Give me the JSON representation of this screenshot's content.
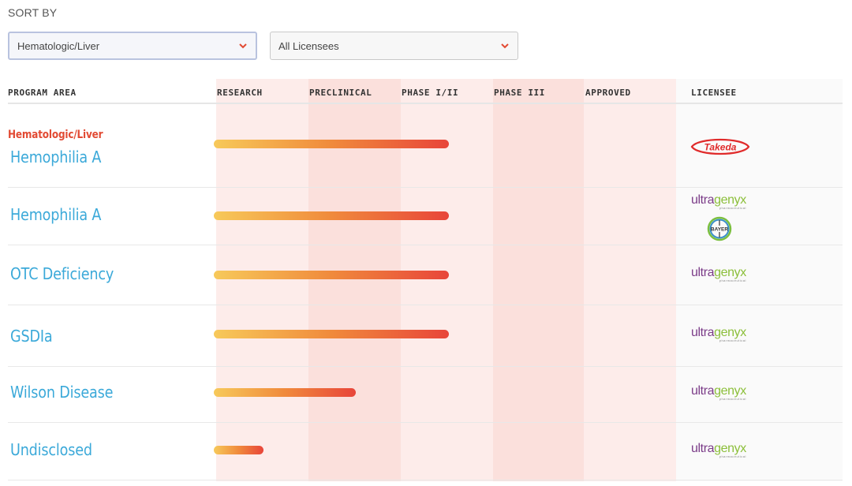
{
  "sort": {
    "label": "SORT BY",
    "program_area_value": "Hematologic/Liver",
    "licensee_value": "All Licensees"
  },
  "headers": {
    "program_area": "PROGRAM AREA",
    "research": "RESEARCH",
    "preclinical": "PRECLINICAL",
    "phase12": "PHASE I/II",
    "phase3": "PHASE III",
    "approved": "APPROVED",
    "licensee": "LICENSEE"
  },
  "category": "Hematologic/Liver",
  "rows": [
    {
      "program": "Hemophilia A",
      "stage": "Phase I/II",
      "licensees": [
        "Takeda"
      ]
    },
    {
      "program": "Hemophilia A",
      "stage": "Phase I/II",
      "licensees": [
        "ultragenyx",
        "BAYER"
      ]
    },
    {
      "program": "OTC Deficiency",
      "stage": "Phase I/II",
      "licensees": [
        "ultragenyx"
      ]
    },
    {
      "program": "GSDIa",
      "stage": "Phase I/II",
      "licensees": [
        "ultragenyx"
      ]
    },
    {
      "program": "Wilson Disease",
      "stage": "Preclinical",
      "licensees": [
        "ultragenyx"
      ]
    },
    {
      "program": "Undisclosed",
      "stage": "Research",
      "licensees": [
        "ultragenyx"
      ]
    }
  ],
  "logos": {
    "takeda": "Takeda",
    "ultragenyx_a": "ultra",
    "ultragenyx_b": "genyx",
    "ultragenyx_sub": "pharmaceutical",
    "bayer": "BAYER"
  },
  "colors": {
    "accent_red": "#e24a33",
    "program_blue": "#3ba9d9",
    "bar_start": "#f7c95a",
    "bar_end": "#e8453a"
  }
}
